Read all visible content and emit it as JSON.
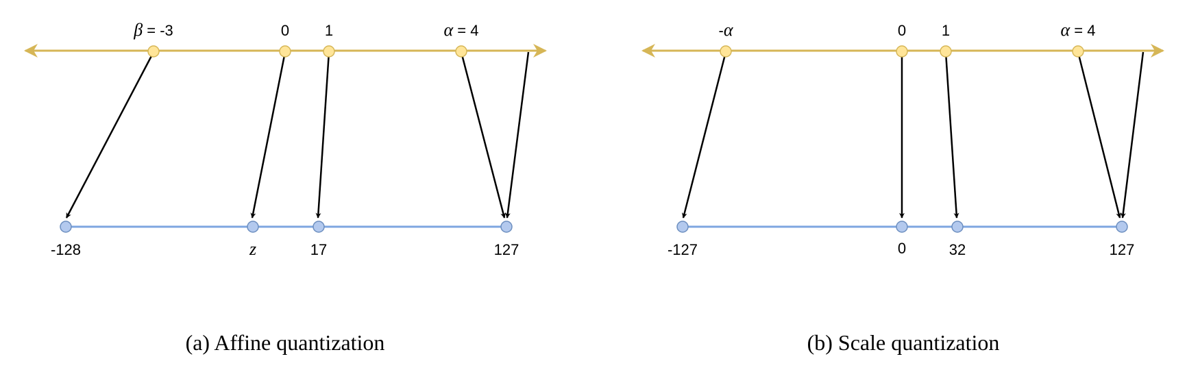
{
  "colors": {
    "real_axis": "#D6B656",
    "real_point_fill": "#FFE599",
    "int_axis": "#7EA6E0",
    "int_point_fill": "#B3C9EE",
    "arrow": "#000000"
  },
  "panels": [
    {
      "caption": "(a) Affine quantization",
      "real_points": [
        {
          "label_sym": "β",
          "label_rest": " = -3"
        },
        {
          "label": "0"
        },
        {
          "label": "1"
        },
        {
          "label_sym": "α",
          "label_rest": " = 4"
        }
      ],
      "int_points": [
        {
          "label": "-128"
        },
        {
          "label_ital": "z"
        },
        {
          "label": "17"
        },
        {
          "label": "127"
        }
      ]
    },
    {
      "caption": "(b) Scale quantization",
      "real_points": [
        {
          "label_pre": "-",
          "label_sym": "α"
        },
        {
          "label": "0"
        },
        {
          "label": "1"
        },
        {
          "label_sym": "α",
          "label_rest": " = 4"
        }
      ],
      "int_points": [
        {
          "label": "-127"
        },
        {
          "label": "0"
        },
        {
          "label": "32"
        },
        {
          "label": "127"
        }
      ]
    }
  ]
}
